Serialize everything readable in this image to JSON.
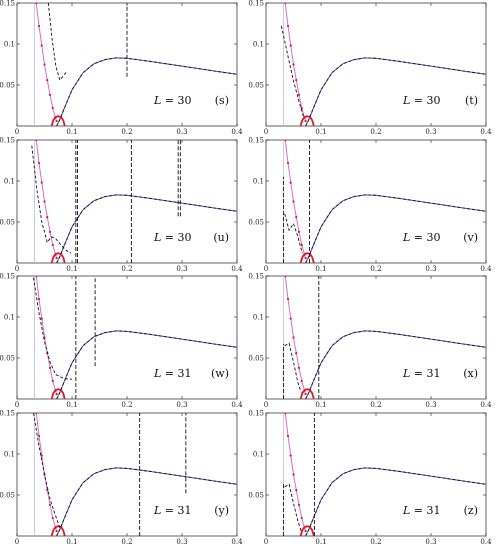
{
  "chart_data": [
    {
      "type": "line",
      "panel_label": "(s)",
      "annotation": "L = 30",
      "xlim": [
        0,
        0.4
      ],
      "ylim": [
        0,
        0.15
      ],
      "x_ticks": [
        "0",
        "0.1",
        "0.2",
        "0.3",
        "0.4"
      ],
      "y_ticks": [
        "0.05",
        "0.1",
        "0.15"
      ],
      "dashed_spikes": [
        {
          "x": 0.2,
          "y_from": 0.06,
          "y_to": 0.15
        }
      ],
      "dashed_branch": [
        [
          0.057,
          0.15
        ],
        [
          0.064,
          0.105
        ],
        [
          0.071,
          0.072
        ],
        [
          0.078,
          0.056
        ],
        [
          0.083,
          0.06
        ],
        [
          0.09,
          0.066
        ]
      ]
    },
    {
      "type": "line",
      "panel_label": "(t)",
      "annotation": "L = 30",
      "xlim": [
        0,
        0.4
      ],
      "ylim": [
        0,
        0.15
      ],
      "x_ticks": [
        "0",
        "0.1",
        "0.2",
        "0.3",
        "0.4"
      ],
      "y_ticks": [
        "0.05",
        "0.1",
        "0.15"
      ],
      "dashed_spikes": [],
      "dashed_branch": [
        [
          0.028,
          0.122
        ],
        [
          0.04,
          0.085
        ],
        [
          0.05,
          0.055
        ],
        [
          0.06,
          0.03
        ],
        [
          0.068,
          0.012
        ]
      ]
    },
    {
      "type": "line",
      "panel_label": "(u)",
      "annotation": "L = 30",
      "xlim": [
        0,
        0.4
      ],
      "ylim": [
        0,
        0.15
      ],
      "x_ticks": [
        "0",
        "0.1",
        "0.2",
        "0.3",
        "0.4"
      ],
      "y_ticks": [
        "0.05",
        "0.1",
        "0.15"
      ],
      "dashed_spikes": [
        {
          "x": 0.107,
          "y_from": 0.0,
          "y_to": 0.15
        },
        {
          "x": 0.11,
          "y_from": 0.0,
          "y_to": 0.15
        },
        {
          "x": 0.208,
          "y_from": 0.0,
          "y_to": 0.15
        },
        {
          "x": 0.293,
          "y_from": 0.057,
          "y_to": 0.15
        },
        {
          "x": 0.297,
          "y_from": 0.057,
          "y_to": 0.15
        }
      ],
      "dashed_branch": [
        [
          0.027,
          0.143
        ],
        [
          0.036,
          0.09
        ],
        [
          0.045,
          0.05
        ],
        [
          0.055,
          0.025
        ],
        [
          0.062,
          0.032
        ],
        [
          0.07,
          0.03
        ],
        [
          0.08,
          0.022
        ],
        [
          0.09,
          0.015
        ],
        [
          0.098,
          0.012
        ]
      ]
    },
    {
      "type": "line",
      "panel_label": "(v)",
      "annotation": "L = 30",
      "xlim": [
        0,
        0.4
      ],
      "ylim": [
        0,
        0.15
      ],
      "x_ticks": [
        "0",
        "0.1",
        "0.2",
        "0.3",
        "0.4"
      ],
      "y_ticks": [
        "0.05",
        "0.1",
        "0.15"
      ],
      "dashed_spikes": [
        {
          "x": 0.032,
          "y_from": 0.0,
          "y_to": 0.105
        },
        {
          "x": 0.079,
          "y_from": 0.0,
          "y_to": 0.15
        }
      ],
      "dashed_branch": [
        [
          0.034,
          0.06
        ],
        [
          0.042,
          0.04
        ],
        [
          0.05,
          0.048
        ],
        [
          0.058,
          0.032
        ],
        [
          0.066,
          0.012
        ]
      ]
    },
    {
      "type": "line",
      "panel_label": "(w)",
      "annotation": "L = 31",
      "xlim": [
        0,
        0.4
      ],
      "ylim": [
        0,
        0.15
      ],
      "x_ticks": [
        "0",
        "0.1",
        "0.2",
        "0.3",
        "0.4"
      ],
      "y_ticks": [
        "0.05",
        "0.1",
        "0.15"
      ],
      "dashed_spikes": [
        {
          "x": 0.107,
          "y_from": 0.0,
          "y_to": 0.15
        },
        {
          "x": 0.142,
          "y_from": 0.04,
          "y_to": 0.15
        }
      ],
      "dashed_branch": [
        [
          0.03,
          0.148
        ],
        [
          0.04,
          0.105
        ],
        [
          0.05,
          0.07
        ],
        [
          0.06,
          0.045
        ],
        [
          0.07,
          0.03
        ],
        [
          0.085,
          0.025
        ],
        [
          0.1,
          0.024
        ]
      ]
    },
    {
      "type": "line",
      "panel_label": "(x)",
      "annotation": "L = 31",
      "xlim": [
        0,
        0.4
      ],
      "ylim": [
        0,
        0.15
      ],
      "x_ticks": [
        "0",
        "0.1",
        "0.2",
        "0.3",
        "0.4"
      ],
      "y_ticks": [
        "0.05",
        "0.1",
        "0.15"
      ],
      "dashed_spikes": [
        {
          "x": 0.032,
          "y_from": 0.0,
          "y_to": 0.067
        },
        {
          "x": 0.096,
          "y_from": 0.0,
          "y_to": 0.15
        }
      ],
      "dashed_branch": [
        [
          0.034,
          0.065
        ],
        [
          0.042,
          0.068
        ],
        [
          0.05,
          0.045
        ],
        [
          0.058,
          0.02
        ],
        [
          0.064,
          0.008
        ]
      ]
    },
    {
      "type": "line",
      "panel_label": "(y)",
      "annotation": "L = 31",
      "xlim": [
        0,
        0.4
      ],
      "ylim": [
        0,
        0.15
      ],
      "x_ticks": [
        "0",
        "0.1",
        "0.2",
        "0.3",
        "0.4"
      ],
      "y_ticks": [
        "0.05",
        "0.1",
        "0.15"
      ],
      "dashed_spikes": [
        {
          "x": 0.223,
          "y_from": 0.0,
          "y_to": 0.15
        },
        {
          "x": 0.307,
          "y_from": 0.052,
          "y_to": 0.15
        }
      ],
      "dashed_branch": [
        [
          0.03,
          0.15
        ],
        [
          0.04,
          0.11
        ],
        [
          0.05,
          0.075
        ],
        [
          0.06,
          0.045
        ],
        [
          0.07,
          0.025
        ],
        [
          0.078,
          0.01
        ]
      ]
    },
    {
      "type": "line",
      "panel_label": "(z)",
      "annotation": "L = 31",
      "xlim": [
        0,
        0.4
      ],
      "ylim": [
        0,
        0.15
      ],
      "x_ticks": [
        "0",
        "0.1",
        "0.2",
        "0.3",
        "0.4"
      ],
      "y_ticks": [
        "0.05",
        "0.1",
        "0.15"
      ],
      "dashed_spikes": [
        {
          "x": 0.032,
          "y_from": 0.0,
          "y_to": 0.065
        },
        {
          "x": 0.088,
          "y_from": 0.0,
          "y_to": 0.15
        }
      ],
      "dashed_branch": [
        [
          0.034,
          0.06
        ],
        [
          0.042,
          0.063
        ],
        [
          0.05,
          0.04
        ],
        [
          0.058,
          0.018
        ],
        [
          0.064,
          0.006
        ]
      ]
    }
  ],
  "shared": {
    "colors": {
      "magenta_curve": "#d070d0",
      "blue_curve": "#3a5fd8",
      "red_curve": "#e01828",
      "dashed_curve": "#111111",
      "gray_vline": "#b8b8c8"
    },
    "magenta_curve": [
      [
        0.035,
        0.15
      ],
      [
        0.04,
        0.122
      ],
      [
        0.045,
        0.098
      ],
      [
        0.05,
        0.075
      ],
      [
        0.055,
        0.056
      ],
      [
        0.06,
        0.038
      ],
      [
        0.065,
        0.022
      ],
      [
        0.07,
        0.01
      ],
      [
        0.072,
        0.006
      ]
    ],
    "red_dome": [
      [
        0.063,
        0.0
      ],
      [
        0.066,
        0.007
      ],
      [
        0.07,
        0.011
      ],
      [
        0.075,
        0.012
      ],
      [
        0.08,
        0.011
      ],
      [
        0.084,
        0.007
      ],
      [
        0.087,
        0.0
      ]
    ],
    "main_curve": [
      [
        0.072,
        0.0
      ],
      [
        0.078,
        0.008
      ],
      [
        0.085,
        0.02
      ],
      [
        0.1,
        0.044
      ],
      [
        0.12,
        0.065
      ],
      [
        0.14,
        0.076
      ],
      [
        0.16,
        0.081
      ],
      [
        0.18,
        0.083
      ],
      [
        0.2,
        0.0825
      ],
      [
        0.24,
        0.079
      ],
      [
        0.28,
        0.075
      ],
      [
        0.32,
        0.071
      ],
      [
        0.36,
        0.067
      ],
      [
        0.4,
        0.063
      ]
    ],
    "gray_vline_x": 0.032
  }
}
